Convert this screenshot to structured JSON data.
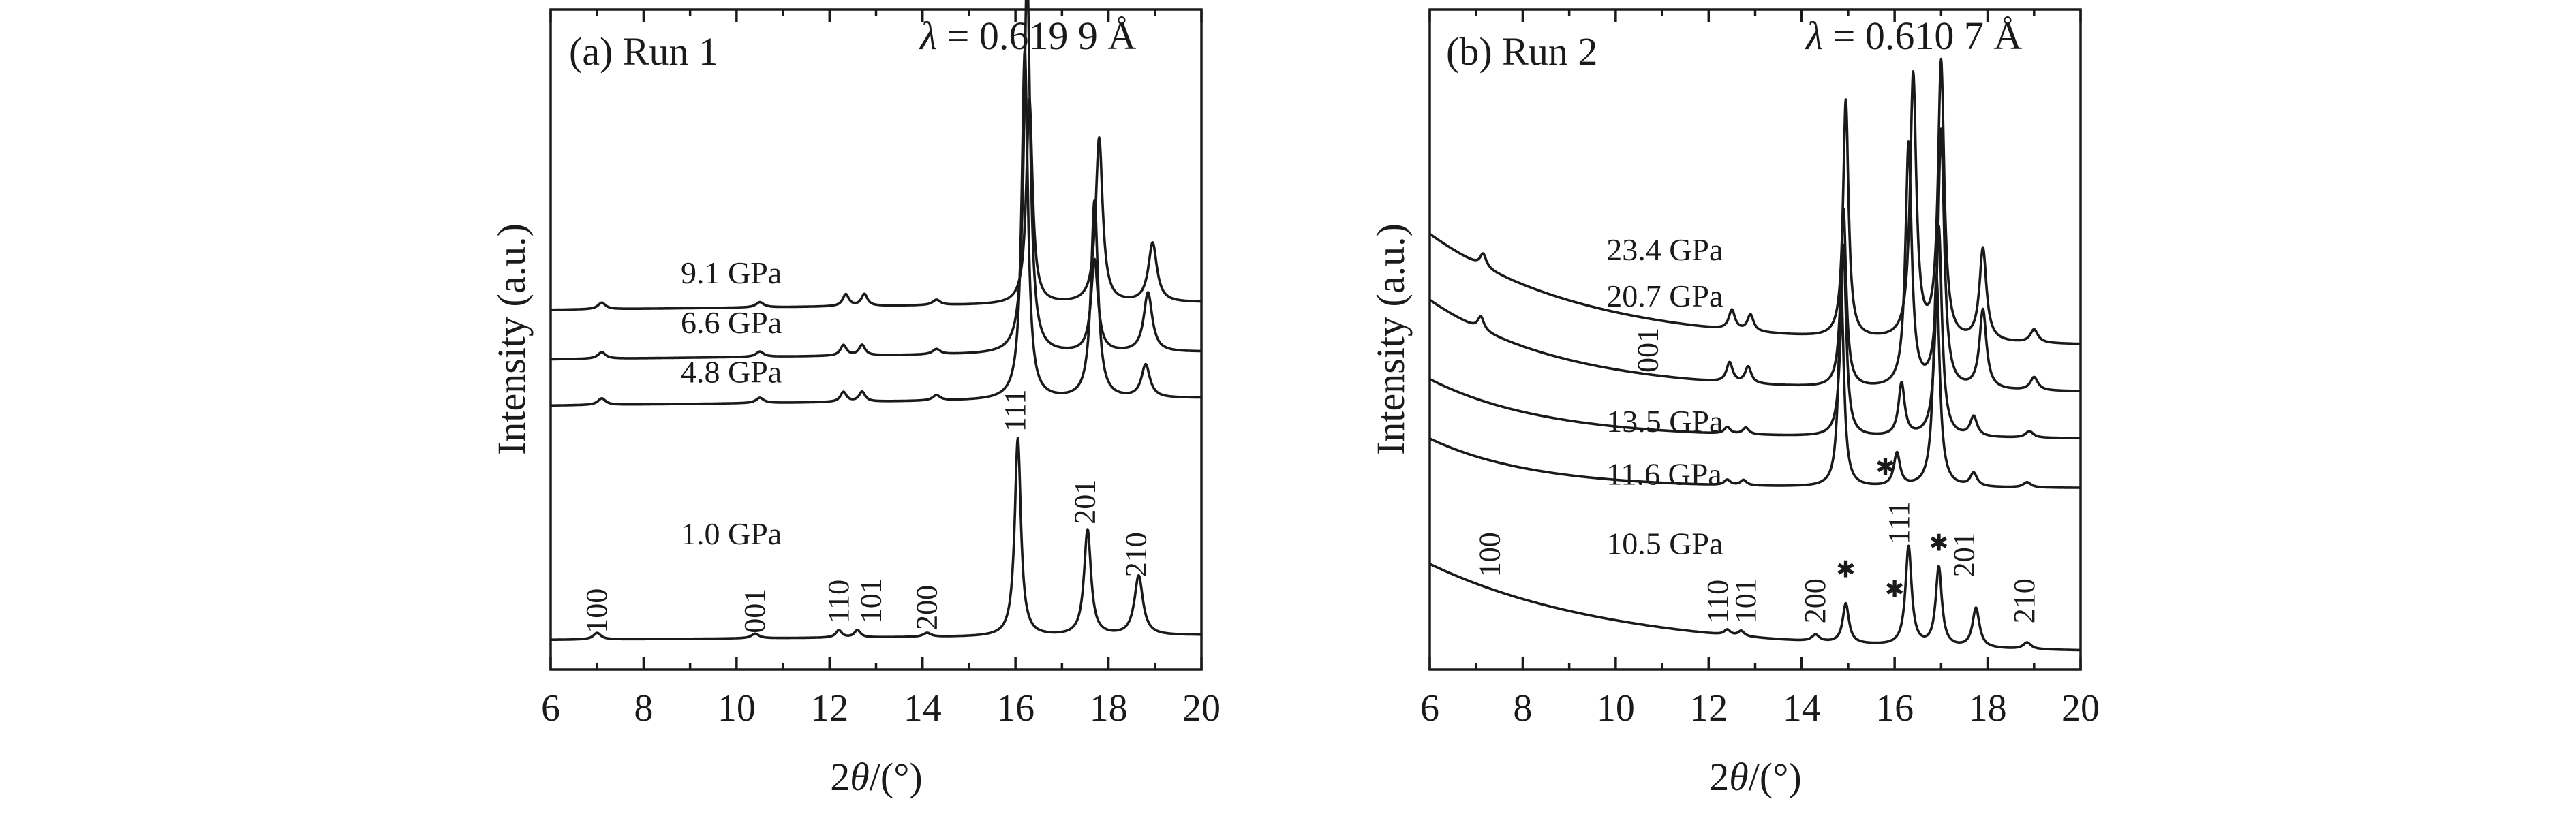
{
  "chart_data": [
    {
      "type": "line",
      "panel_label": "(a) Run 1",
      "wavelength": {
        "symbol": "λ",
        "text": " = 0.619 9 Å"
      },
      "ylabel": "Intensity (a.u.)",
      "xlabel": {
        "pre": "2",
        "theta": "θ",
        "post": "/(°)"
      },
      "xlim": [
        6,
        20
      ],
      "ylim": [
        0,
        100
      ],
      "xticks": [
        "6",
        "8",
        "10",
        "12",
        "14",
        "16",
        "18",
        "20"
      ],
      "series": [
        {
          "name": "1.0 GPa",
          "baseline": 4.5,
          "slope": 0.05,
          "label_pos": [
            8.8,
            19.0
          ],
          "peaks": [
            [
              7.0,
              1.0,
              0.1
            ],
            [
              10.4,
              0.7,
              0.1
            ],
            [
              12.2,
              1.1,
              0.08
            ],
            [
              12.6,
              1.1,
              0.08
            ],
            [
              14.1,
              0.6,
              0.1
            ],
            [
              16.05,
              30.0,
              0.08
            ],
            [
              17.55,
              16.0,
              0.09
            ],
            [
              18.65,
              9.0,
              0.11
            ]
          ]
        },
        {
          "name": "4.8 GPa",
          "baseline": 40.0,
          "slope": 0.08,
          "label_pos": [
            8.8,
            43.5
          ],
          "peaks": [
            [
              7.1,
              1.0,
              0.1
            ],
            [
              10.5,
              0.8,
              0.1
            ],
            [
              12.3,
              1.5,
              0.08
            ],
            [
              12.7,
              1.5,
              0.08
            ],
            [
              14.3,
              0.8,
              0.1
            ],
            [
              16.2,
              53.0,
              0.08
            ],
            [
              17.7,
              30.0,
              0.09
            ],
            [
              18.8,
              5.0,
              0.11
            ]
          ]
        },
        {
          "name": "6.6 GPa",
          "baseline": 47.0,
          "slope": 0.08,
          "label_pos": [
            8.8,
            51.0
          ],
          "peaks": [
            [
              7.1,
              1.0,
              0.1
            ],
            [
              10.5,
              0.8,
              0.1
            ],
            [
              12.3,
              1.6,
              0.08
            ],
            [
              12.7,
              1.6,
              0.08
            ],
            [
              14.3,
              0.8,
              0.1
            ],
            [
              16.25,
              58.0,
              0.08
            ],
            [
              17.7,
              14.0,
              0.09
            ],
            [
              18.85,
              9.0,
              0.11
            ]
          ]
        },
        {
          "name": "9.1 GPa",
          "baseline": 54.5,
          "slope": 0.08,
          "label_pos": [
            8.8,
            58.5
          ],
          "peaks": [
            [
              7.1,
              1.0,
              0.1
            ],
            [
              10.5,
              0.8,
              0.1
            ],
            [
              12.35,
              1.8,
              0.08
            ],
            [
              12.75,
              1.8,
              0.08
            ],
            [
              14.3,
              0.8,
              0.1
            ],
            [
              16.3,
              31.0,
              0.08
            ],
            [
              17.8,
              25.0,
              0.09
            ],
            [
              18.95,
              9.0,
              0.11
            ]
          ]
        }
      ],
      "peak_labels": [
        {
          "text": "100",
          "x": 7.0,
          "y": 5.5
        },
        {
          "text": "001",
          "x": 10.4,
          "y": 5.5
        },
        {
          "text": "110",
          "x": 12.2,
          "y": 7.0
        },
        {
          "text": "101",
          "x": 12.9,
          "y": 7.0
        },
        {
          "text": "200",
          "x": 14.1,
          "y": 6.0
        },
        {
          "text": "111",
          "x": 16.0,
          "y": 36.0
        },
        {
          "text": "201",
          "x": 17.5,
          "y": 22.0
        },
        {
          "text": "210",
          "x": 18.6,
          "y": 14.0
        }
      ],
      "markers": []
    },
    {
      "type": "line",
      "panel_label": "(b) Run 2",
      "wavelength": {
        "symbol": "λ",
        "text": " = 0.610 7 Å"
      },
      "ylabel": "Intensity (a.u.)",
      "xlabel": {
        "pre": "2",
        "theta": "θ",
        "post": "/(°)"
      },
      "xlim": [
        6,
        20
      ],
      "ylim": [
        0,
        100
      ],
      "xticks": [
        "6",
        "8",
        "10",
        "12",
        "14",
        "16",
        "18",
        "20"
      ],
      "series": [
        {
          "name": "10.5 GPa",
          "bg_start": 16.0,
          "bg_end": 2.5,
          "bg_k": 0.25,
          "label_pos": [
            9.8,
            17.5
          ],
          "peaks": [
            [
              12.4,
              0.8,
              0.08
            ],
            [
              12.7,
              0.8,
              0.08
            ],
            [
              14.3,
              1.0,
              0.1
            ],
            [
              14.95,
              6.0,
              0.08
            ],
            [
              16.3,
              15.0,
              0.08
            ],
            [
              16.95,
              12.0,
              0.08
            ],
            [
              17.75,
              6.0,
              0.09
            ],
            [
              18.85,
              1.0,
              0.1
            ]
          ]
        },
        {
          "name": "11.6 GPa",
          "bg_start": 35.0,
          "bg_end": 27.5,
          "bg_k": 0.45,
          "label_pos": [
            9.8,
            28.0
          ],
          "peaks": [
            [
              12.4,
              0.8,
              0.08
            ],
            [
              12.75,
              0.8,
              0.08
            ],
            [
              14.85,
              30.0,
              0.07
            ],
            [
              16.05,
              5.0,
              0.08
            ],
            [
              16.9,
              32.0,
              0.08
            ],
            [
              17.7,
              2.0,
              0.09
            ],
            [
              18.85,
              0.8,
              0.1
            ]
          ]
        },
        {
          "name": "13.5 GPa",
          "bg_start": 44.0,
          "bg_end": 35.0,
          "bg_k": 0.4,
          "label_pos": [
            9.8,
            36.0
          ],
          "peaks": [
            [
              12.4,
              1.0,
              0.08
            ],
            [
              12.8,
              1.0,
              0.08
            ],
            [
              14.9,
              29.0,
              0.07
            ],
            [
              16.15,
              8.0,
              0.08
            ],
            [
              16.95,
              32.0,
              0.08
            ],
            [
              17.7,
              3.0,
              0.09
            ],
            [
              18.9,
              1.0,
              0.1
            ]
          ]
        },
        {
          "name": "20.7 GPa",
          "bg_start": 56.0,
          "bg_end": 42.0,
          "bg_k": 0.35,
          "label_pos": [
            9.8,
            55.0
          ],
          "peaks": [
            [
              7.1,
              2.0,
              0.08
            ],
            [
              12.45,
              3.0,
              0.08
            ],
            [
              12.85,
              2.5,
              0.08
            ],
            [
              14.9,
              27.0,
              0.07
            ],
            [
              16.3,
              37.0,
              0.08
            ],
            [
              17.0,
              39.0,
              0.08
            ],
            [
              17.9,
              12.0,
              0.09
            ],
            [
              19.0,
              2.0,
              0.1
            ]
          ]
        },
        {
          "name": "23.4 GPa",
          "bg_start": 66.0,
          "bg_end": 49.0,
          "bg_k": 0.3,
          "label_pos": [
            9.8,
            62.0
          ],
          "peaks": [
            [
              7.15,
              2.0,
              0.08
            ],
            [
              12.5,
              3.0,
              0.08
            ],
            [
              12.9,
              2.5,
              0.08
            ],
            [
              14.95,
              36.0,
              0.07
            ],
            [
              16.4,
              40.0,
              0.08
            ],
            [
              17.0,
              42.0,
              0.08
            ],
            [
              17.9,
              14.0,
              0.09
            ],
            [
              19.0,
              2.0,
              0.1
            ]
          ]
        }
      ],
      "peak_labels": [
        {
          "text": "100",
          "x": 7.3,
          "y": 14.0
        },
        {
          "text": "001",
          "x": 10.7,
          "y": 45.0
        },
        {
          "text": "110",
          "x": 12.2,
          "y": 7.0
        },
        {
          "text": "101",
          "x": 12.8,
          "y": 7.0
        },
        {
          "text": "200",
          "x": 14.3,
          "y": 7.0
        },
        {
          "text": "111",
          "x": 16.1,
          "y": 19.0
        },
        {
          "text": "201",
          "x": 17.5,
          "y": 14.0
        },
        {
          "text": "210",
          "x": 18.8,
          "y": 7.0
        }
      ],
      "markers": [
        {
          "symbol": "✱",
          "x": 14.95,
          "y": 14.0
        },
        {
          "symbol": "✱",
          "x": 16.0,
          "y": 11.0
        },
        {
          "symbol": "✱",
          "x": 16.95,
          "y": 18.0
        },
        {
          "symbol": "✱",
          "x": 15.8,
          "y": 29.5
        }
      ]
    }
  ]
}
